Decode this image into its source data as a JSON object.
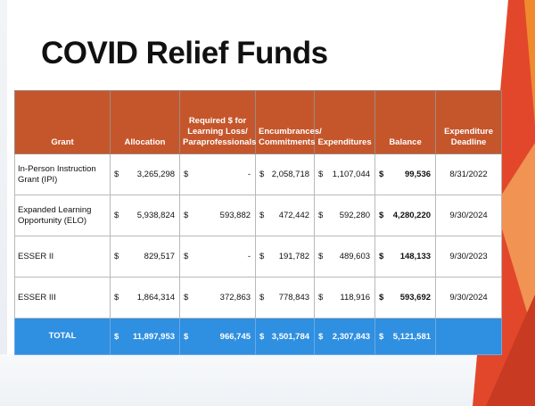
{
  "title": "COVID Relief Funds",
  "table": {
    "headers": [
      "Grant",
      "Allocation",
      "Required $ for Learning Loss/ Paraprofessionals",
      "Encumbrances/ Commitments",
      "Expenditures",
      "Balance",
      "Expenditure Deadline"
    ],
    "currency": "$",
    "rows": [
      {
        "grant": "In-Person Instruction Grant (IPI)",
        "allocation": "3,265,298",
        "required": "-",
        "encumbrances": "2,058,718",
        "expenditures": "1,107,044",
        "balance": "99,536",
        "deadline": "8/31/2022"
      },
      {
        "grant": "Expanded Learning Opportunity (ELO)",
        "allocation": "5,938,824",
        "required": "593,882",
        "encumbrances": "472,442",
        "expenditures": "592,280",
        "balance": "4,280,220",
        "deadline": "9/30/2024"
      },
      {
        "grant": "ESSER II",
        "allocation": "829,517",
        "required": "-",
        "encumbrances": "191,782",
        "expenditures": "489,603",
        "balance": "148,133",
        "deadline": "9/30/2023"
      },
      {
        "grant": "ESSER III",
        "allocation": "1,864,314",
        "required": "372,863",
        "encumbrances": "778,843",
        "expenditures": "118,916",
        "balance": "593,692",
        "deadline": "9/30/2024"
      }
    ],
    "total": {
      "label": "TOTAL",
      "allocation": "11,897,953",
      "required": "966,745",
      "encumbrances": "3,501,784",
      "expenditures": "2,307,843",
      "balance": "5,121,581",
      "deadline": ""
    }
  },
  "colors": {
    "header": "#c5562b",
    "total": "#2f8fe0",
    "accent_red": "#e2472b",
    "accent_orange": "#f08a2e"
  }
}
